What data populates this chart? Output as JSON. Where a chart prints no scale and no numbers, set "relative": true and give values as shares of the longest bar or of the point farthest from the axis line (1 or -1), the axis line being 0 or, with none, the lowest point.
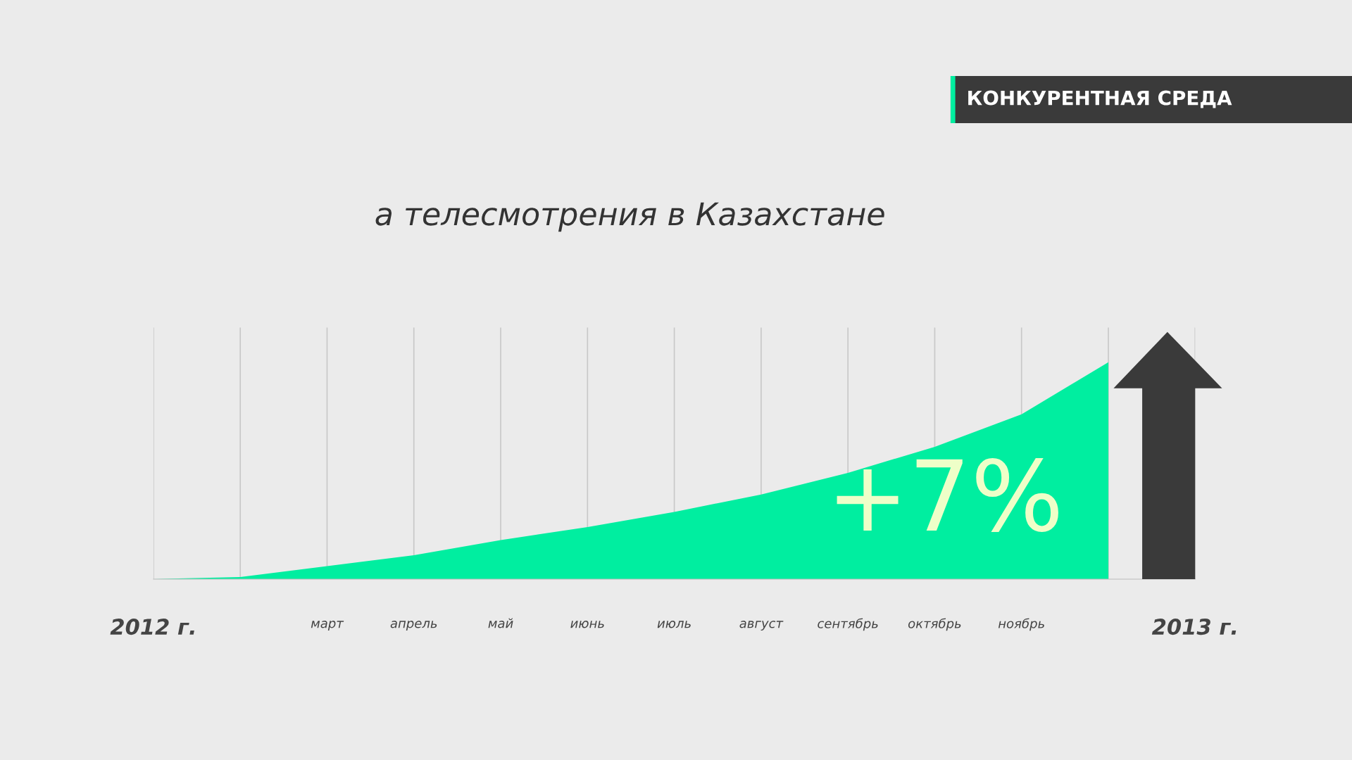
{
  "chart_data": {
    "type": "area",
    "relative": true,
    "title": "а телесмотрения в Казахстане",
    "subtitle": "КОНКУРЕНТНАЯ СРЕДА",
    "categories": [
      "2012 г.",
      null,
      "март",
      "апрель",
      "май",
      "июнь",
      "июль",
      "август",
      "сентябрь",
      "октябрь",
      "ноябрь",
      null,
      "2013 г."
    ],
    "series": [
      {
        "color": "#00eea0",
        "values": [
          0,
          0.01,
          0.06,
          0.11,
          0.18,
          0.24,
          0.31,
          0.39,
          0.49,
          0.61,
          0.76,
          1.0,
          null
        ]
      }
    ],
    "annotations": [
      "+7%"
    ],
    "grid": "x"
  }
}
